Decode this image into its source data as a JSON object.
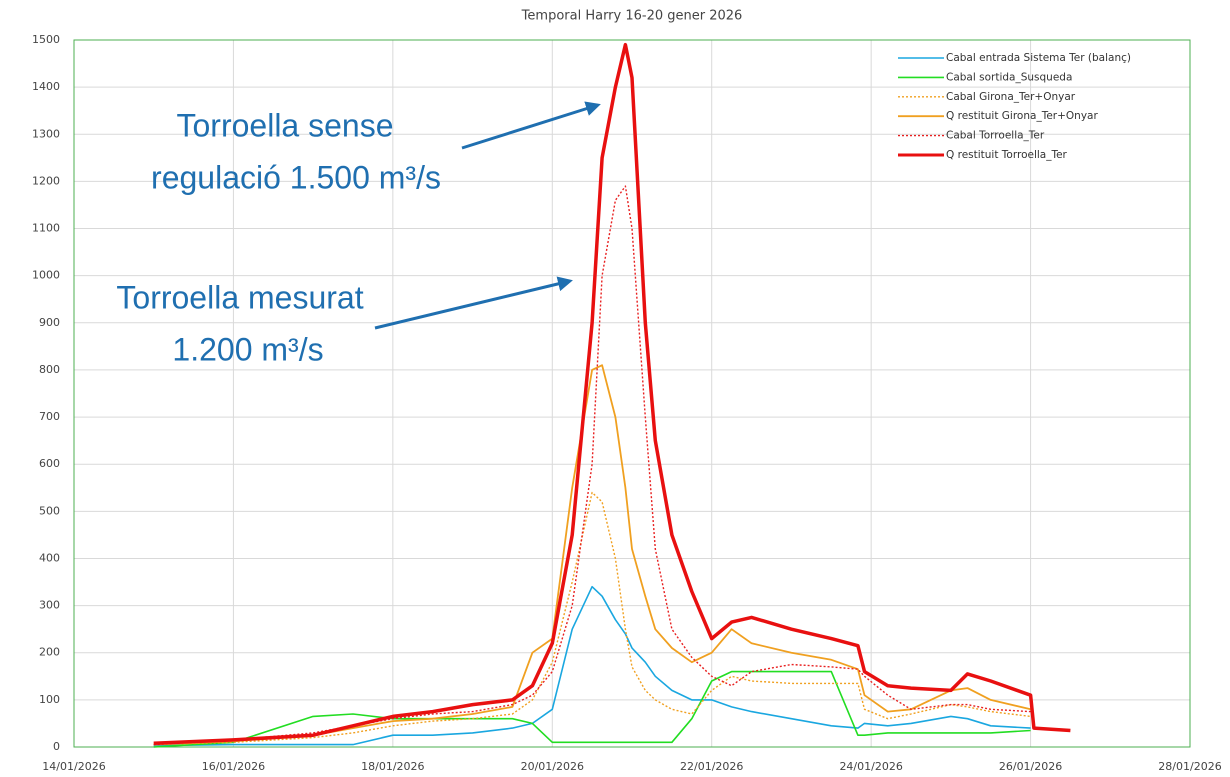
{
  "chart_data": {
    "type": "line",
    "title": "Temporal Harry 16-20 gener 2026",
    "x": [
      "15/01/2026 00:00",
      "16/01/2026 00:00",
      "17/01/2026 00:00",
      "17/01/2026 12:00",
      "18/01/2026 00:00",
      "18/01/2026 12:00",
      "19/01/2026 00:00",
      "19/01/2026 12:00",
      "19/01/2026 18:00",
      "20/01/2026 00:00",
      "20/01/2026 06:00",
      "20/01/2026 12:00",
      "20/01/2026 15:00",
      "20/01/2026 19:00",
      "20/01/2026 22:00",
      "21/01/2026 00:00",
      "21/01/2026 04:00",
      "21/01/2026 07:00",
      "21/01/2026 12:00",
      "21/01/2026 18:00",
      "22/01/2026 00:00",
      "22/01/2026 06:00",
      "22/01/2026 12:00",
      "23/01/2026 00:00",
      "23/01/2026 12:00",
      "23/01/2026 20:00",
      "23/01/2026 22:00",
      "24/01/2026 05:00",
      "24/01/2026 12:00",
      "25/01/2026 00:00",
      "25/01/2026 05:00",
      "25/01/2026 12:00",
      "26/01/2026 00:00",
      "26/01/2026 01:00",
      "26/01/2026 12:00"
    ],
    "series": [
      {
        "name": "Cabal entrada Sistema Ter (balanç)",
        "color": "#1aa7e0",
        "style": "solid",
        "width": 1.6,
        "values": [
          3,
          5,
          5,
          5,
          25,
          25,
          30,
          40,
          50,
          80,
          250,
          340,
          320,
          270,
          240,
          210,
          180,
          150,
          120,
          100,
          100,
          85,
          75,
          60,
          45,
          40,
          50,
          45,
          50,
          65,
          60,
          45,
          40,
          null,
          null
        ]
      },
      {
        "name": "Cabal sortida_Susqueda",
        "color": "#22dd22",
        "style": "solid",
        "width": 1.6,
        "values": [
          0,
          10,
          65,
          70,
          60,
          60,
          60,
          60,
          50,
          10,
          10,
          10,
          10,
          10,
          10,
          10,
          10,
          10,
          10,
          60,
          140,
          160,
          160,
          160,
          160,
          25,
          25,
          30,
          30,
          30,
          30,
          30,
          35,
          null,
          null
        ]
      },
      {
        "name": "Cabal Girona_Ter+Onyar",
        "color": "#f0a020",
        "style": "dotted",
        "width": 1.4,
        "values": [
          5,
          10,
          20,
          30,
          45,
          55,
          60,
          70,
          100,
          180,
          350,
          540,
          520,
          400,
          250,
          170,
          120,
          100,
          80,
          70,
          120,
          150,
          140,
          135,
          135,
          135,
          80,
          60,
          70,
          90,
          85,
          75,
          65,
          null,
          null
        ]
      },
      {
        "name": "Q restituit Girona_Ter+Onyar",
        "color": "#f0a020",
        "style": "solid",
        "width": 1.8,
        "values": [
          5,
          12,
          25,
          40,
          55,
          60,
          70,
          85,
          200,
          230,
          550,
          800,
          810,
          700,
          550,
          420,
          320,
          250,
          210,
          180,
          200,
          250,
          220,
          200,
          185,
          165,
          110,
          75,
          80,
          120,
          125,
          100,
          80,
          null,
          null
        ]
      },
      {
        "name": "Cabal Torroella_Ter",
        "color": "#e82020",
        "style": "dotted",
        "width": 1.4,
        "values": [
          5,
          15,
          30,
          45,
          60,
          70,
          75,
          90,
          110,
          160,
          300,
          600,
          1000,
          1160,
          1190,
          1100,
          700,
          420,
          250,
          190,
          150,
          130,
          160,
          175,
          170,
          165,
          150,
          110,
          80,
          90,
          90,
          80,
          75,
          null,
          null
        ]
      },
      {
        "name": "Q restituit Torroella_Ter",
        "color": "#e81010",
        "style": "solid",
        "width": 3.5,
        "values": [
          8,
          15,
          25,
          45,
          65,
          75,
          90,
          100,
          130,
          220,
          450,
          900,
          1250,
          1400,
          1490,
          1420,
          900,
          650,
          450,
          330,
          230,
          265,
          275,
          250,
          230,
          215,
          160,
          130,
          125,
          120,
          155,
          140,
          110,
          40,
          35
        ]
      }
    ],
    "xlim": [
      "14/01/2026",
      "28/01/2026"
    ],
    "xticks": [
      "14/01/2026",
      "16/01/2026",
      "18/01/2026",
      "20/01/2026",
      "22/01/2026",
      "24/01/2026",
      "26/01/2026",
      "28/01/2026"
    ],
    "ylim": [
      0,
      1500
    ],
    "yticks": [
      0,
      100,
      200,
      300,
      400,
      500,
      600,
      700,
      800,
      900,
      1000,
      1100,
      1200,
      1300,
      1400,
      1500
    ],
    "grid": true,
    "legend": "top-right",
    "annotations": [
      {
        "lines": [
          "Torroella sense",
          "regulació 1.500 m³/s"
        ]
      },
      {
        "lines": [
          "Torroella mesurat",
          "1.200 m³/s"
        ]
      }
    ]
  }
}
